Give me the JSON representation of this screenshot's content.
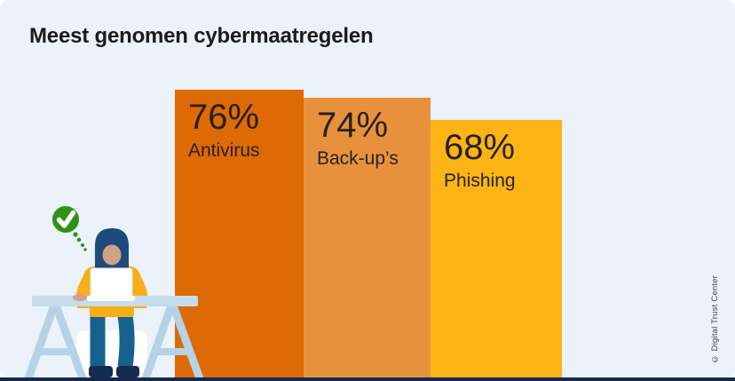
{
  "page": {
    "title": "Meest genomen cybermaatregelen",
    "credit": "© Digital Trust Center"
  },
  "chart_data": {
    "type": "bar",
    "title": "Meest genomen cybermaatregelen",
    "categories": [
      "Antivirus",
      "Back-up’s",
      "Phishing"
    ],
    "values": [
      76,
      74,
      68
    ],
    "value_labels": [
      "76%",
      "74%",
      "68%"
    ],
    "unit": "%",
    "orientation": "vertical",
    "baseline": "bottom",
    "value_label_position": "inside-top",
    "grid": false,
    "legend": false,
    "bar_colors": [
      "#dd6a05",
      "#e8913c",
      "#fcb415"
    ]
  },
  "illustration": {
    "icons": [
      "checkmark-icon"
    ],
    "colors": {
      "check_green": "#2f9215",
      "check_mark": "#ffffff",
      "hair": "#1d4b7b",
      "skin": "#d3a184",
      "sweater": "#f6af19",
      "pants": "#17618f",
      "shoes": "#132c4f",
      "desk": "#c4dcec",
      "trestle": "#b5d2e6",
      "chair": "#fdfefe",
      "laptop": "#ffffff"
    }
  },
  "colors": {
    "page_background": "#ffffff",
    "card_background": "#ecf2fa",
    "bottom_strip": "#15294b",
    "title_text": "#1b1b1b",
    "bar_text": "#26211c",
    "credit_text": "#404040"
  }
}
